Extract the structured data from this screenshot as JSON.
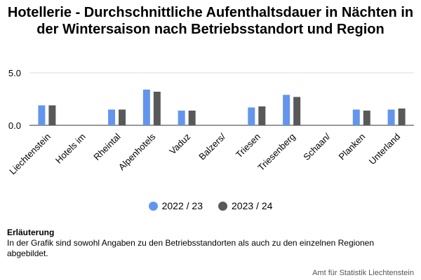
{
  "chart_data": {
    "type": "bar",
    "title": "Hotellerie - Durchschnittliche Aufenthaltsdauer in Nächten in der Wintersaison nach Betriebsstandort und Region",
    "categories": [
      "Liechtenstein",
      "Hotels im",
      "Rheintal",
      "Alpenhotels",
      "Vaduz",
      "Balzers/",
      "Triesen",
      "Triesenberg",
      "Schaan/",
      "Planken",
      "Unterland"
    ],
    "series": [
      {
        "name": "2022 / 23",
        "color": "#6495ED",
        "values": [
          1.9,
          null,
          1.5,
          3.4,
          1.4,
          null,
          1.7,
          2.9,
          null,
          1.5,
          1.5
        ]
      },
      {
        "name": "2023 / 24",
        "color": "#595959",
        "values": [
          1.9,
          null,
          1.5,
          3.2,
          1.4,
          null,
          1.8,
          2.7,
          null,
          1.4,
          1.6
        ]
      }
    ],
    "yticks": [
      "0.0",
      "5.0"
    ],
    "ylim": [
      0,
      5
    ],
    "grid": true,
    "legend_position": "bottom"
  },
  "note": {
    "heading": "Erläuterung",
    "text": "In der Grafik sind sowohl Angaben zu den Betriebsstandorten als auch zu den einzelnen Regionen abgebildet."
  },
  "source": "Amt für Statistik Liechtenstein"
}
